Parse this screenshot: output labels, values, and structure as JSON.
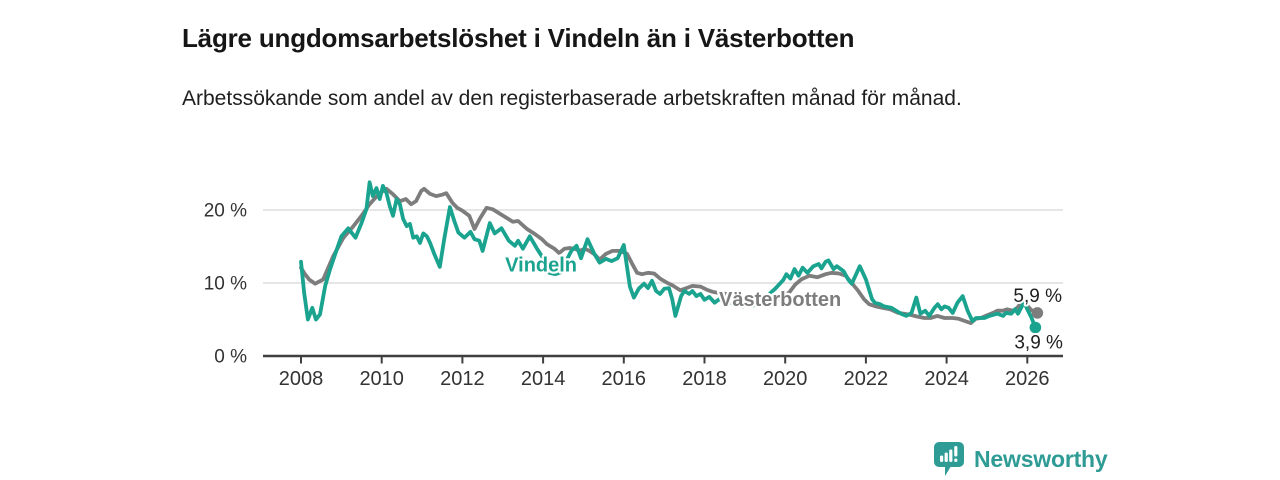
{
  "header": {
    "title": "Lägre ungdomsarbetslöshet i Vindeln än i Västerbotten",
    "subtitle": "Arbetssökande som andel av den registerbaserade arbetskraften månad för månad."
  },
  "branding": {
    "logo_text": "Newsworthy",
    "logo_icon": "speech-bubble-bar-chart-icon",
    "logo_color": "#2E9B95"
  },
  "colors": {
    "vindeln_line": "#1AA38F",
    "vasterbotten_line": "#7D7D7D",
    "axis_text": "#333333",
    "gridline": "#D6D6D6",
    "axis_line": "#3F3F3F",
    "end_label_text": "#1F1F1F",
    "background": "#FFFFFF"
  },
  "chart_data": {
    "type": "line",
    "title": "Lägre ungdomsarbetslöshet i Vindeln än i Västerbotten",
    "subtitle": "Arbetssökande som andel av den registerbaserade arbetskraften månad för månad.",
    "xlabel": "",
    "ylabel": "",
    "x_unit": "year",
    "xlim": [
      2007.9,
      2026.85
    ],
    "ylim": [
      0,
      24.5
    ],
    "grid": "horizontal",
    "legend_position": "inline-labels",
    "yticks": [
      {
        "value": 0,
        "label": "0 %"
      },
      {
        "value": 10,
        "label": "10 %"
      },
      {
        "value": 20,
        "label": "20 %"
      }
    ],
    "xticks": [
      {
        "value": 2008,
        "label": "2008"
      },
      {
        "value": 2010,
        "label": "2010"
      },
      {
        "value": 2012,
        "label": "2012"
      },
      {
        "value": 2014,
        "label": "2014"
      },
      {
        "value": 2016,
        "label": "2016"
      },
      {
        "value": 2018,
        "label": "2018"
      },
      {
        "value": 2020,
        "label": "2020"
      },
      {
        "value": 2022,
        "label": "2022"
      },
      {
        "value": 2024,
        "label": "2024"
      },
      {
        "value": 2026,
        "label": "2026"
      }
    ],
    "series": [
      {
        "name": "Västerbotten",
        "color": "#7D7D7D",
        "end_value": 5.9,
        "end_label": "5,9 %",
        "end_label_side": "above",
        "inline_label_anchor": {
          "year": 2018.36,
          "value": 6.85
        },
        "points": [
          [
            2008.0,
            12.1
          ],
          [
            2008.1,
            11.2
          ],
          [
            2008.2,
            10.5
          ],
          [
            2008.35,
            9.9
          ],
          [
            2008.55,
            10.5
          ],
          [
            2008.8,
            13.7
          ],
          [
            2009.05,
            16.2
          ],
          [
            2009.3,
            17.8
          ],
          [
            2009.5,
            19.2
          ],
          [
            2009.7,
            20.8
          ],
          [
            2009.88,
            21.9
          ],
          [
            2010.03,
            22.6
          ],
          [
            2010.12,
            22.9
          ],
          [
            2010.27,
            22.2
          ],
          [
            2010.45,
            21.2
          ],
          [
            2010.6,
            21.5
          ],
          [
            2010.73,
            20.8
          ],
          [
            2010.85,
            21.2
          ],
          [
            2010.98,
            22.6
          ],
          [
            2011.05,
            22.9
          ],
          [
            2011.2,
            22.2
          ],
          [
            2011.35,
            21.9
          ],
          [
            2011.5,
            22.1
          ],
          [
            2011.6,
            22.3
          ],
          [
            2011.75,
            21.0
          ],
          [
            2011.87,
            20.3
          ],
          [
            2012.0,
            19.9
          ],
          [
            2012.17,
            19.2
          ],
          [
            2012.3,
            17.4
          ],
          [
            2012.43,
            18.8
          ],
          [
            2012.6,
            20.3
          ],
          [
            2012.75,
            20.1
          ],
          [
            2012.93,
            19.5
          ],
          [
            2013.1,
            18.9
          ],
          [
            2013.25,
            18.4
          ],
          [
            2013.38,
            18.5
          ],
          [
            2013.48,
            18.0
          ],
          [
            2013.6,
            17.4
          ],
          [
            2013.8,
            16.7
          ],
          [
            2013.97,
            16.0
          ],
          [
            2014.1,
            15.3
          ],
          [
            2014.28,
            14.7
          ],
          [
            2014.4,
            14.1
          ],
          [
            2014.53,
            14.7
          ],
          [
            2014.66,
            14.8
          ],
          [
            2014.78,
            14.7
          ],
          [
            2014.9,
            14.4
          ],
          [
            2015.03,
            14.7
          ],
          [
            2015.15,
            14.4
          ],
          [
            2015.28,
            13.9
          ],
          [
            2015.4,
            13.2
          ],
          [
            2015.56,
            14.0
          ],
          [
            2015.72,
            14.4
          ],
          [
            2015.9,
            14.4
          ],
          [
            2016.08,
            14.0
          ],
          [
            2016.2,
            12.7
          ],
          [
            2016.33,
            11.4
          ],
          [
            2016.45,
            11.2
          ],
          [
            2016.6,
            11.4
          ],
          [
            2016.75,
            11.3
          ],
          [
            2016.9,
            10.6
          ],
          [
            2017.05,
            10.1
          ],
          [
            2017.2,
            9.7
          ],
          [
            2017.4,
            9.0
          ],
          [
            2017.55,
            9.3
          ],
          [
            2017.7,
            9.6
          ],
          [
            2017.9,
            9.5
          ],
          [
            2018.05,
            9.1
          ],
          [
            2018.2,
            8.8
          ],
          [
            2018.37,
            8.6
          ],
          [
            2018.55,
            8.5
          ],
          [
            2018.7,
            8.2
          ],
          [
            2018.85,
            8.0
          ],
          [
            2019.05,
            7.7
          ],
          [
            2019.2,
            7.4
          ],
          [
            2019.35,
            7.2
          ],
          [
            2019.5,
            7.3
          ],
          [
            2019.7,
            7.6
          ],
          [
            2019.9,
            8.0
          ],
          [
            2020.1,
            8.7
          ],
          [
            2020.25,
            9.8
          ],
          [
            2020.4,
            10.5
          ],
          [
            2020.6,
            11.0
          ],
          [
            2020.8,
            10.8
          ],
          [
            2021.0,
            11.2
          ],
          [
            2021.15,
            11.4
          ],
          [
            2021.33,
            11.3
          ],
          [
            2021.5,
            11.0
          ],
          [
            2021.6,
            10.3
          ],
          [
            2021.8,
            9.0
          ],
          [
            2021.95,
            7.8
          ],
          [
            2022.08,
            7.1
          ],
          [
            2022.25,
            6.8
          ],
          [
            2022.4,
            6.6
          ],
          [
            2022.6,
            6.4
          ],
          [
            2022.8,
            5.9
          ],
          [
            2022.95,
            5.8
          ],
          [
            2023.13,
            5.6
          ],
          [
            2023.28,
            5.4
          ],
          [
            2023.45,
            5.2
          ],
          [
            2023.6,
            5.2
          ],
          [
            2023.77,
            5.5
          ],
          [
            2023.95,
            5.2
          ],
          [
            2024.15,
            5.2
          ],
          [
            2024.3,
            5.1
          ],
          [
            2024.45,
            4.8
          ],
          [
            2024.6,
            4.5
          ],
          [
            2024.72,
            5.1
          ],
          [
            2024.85,
            5.2
          ],
          [
            2024.97,
            5.5
          ],
          [
            2025.15,
            5.9
          ],
          [
            2025.26,
            6.2
          ],
          [
            2025.4,
            6.2
          ],
          [
            2025.5,
            6.4
          ],
          [
            2025.65,
            6.2
          ],
          [
            2025.75,
            6.6
          ],
          [
            2025.9,
            7.6
          ],
          [
            2026.0,
            6.9
          ],
          [
            2026.1,
            6.3
          ],
          [
            2026.25,
            5.9
          ]
        ]
      },
      {
        "name": "Vindeln",
        "color": "#1AA38F",
        "end_value": 3.9,
        "end_label": "3,9 %",
        "end_label_side": "below",
        "inline_label_anchor": {
          "year": 2013.06,
          "value": 11.6
        },
        "points": [
          [
            2008.0,
            12.9
          ],
          [
            2008.08,
            8.6
          ],
          [
            2008.17,
            5.0
          ],
          [
            2008.28,
            6.6
          ],
          [
            2008.37,
            5.0
          ],
          [
            2008.47,
            5.7
          ],
          [
            2008.6,
            9.6
          ],
          [
            2008.72,
            11.9
          ],
          [
            2008.9,
            14.8
          ],
          [
            2009.0,
            16.4
          ],
          [
            2009.17,
            17.5
          ],
          [
            2009.35,
            16.2
          ],
          [
            2009.5,
            18.2
          ],
          [
            2009.62,
            20.1
          ],
          [
            2009.7,
            23.8
          ],
          [
            2009.78,
            21.9
          ],
          [
            2009.87,
            23.0
          ],
          [
            2009.95,
            21.5
          ],
          [
            2010.03,
            23.3
          ],
          [
            2010.12,
            22.3
          ],
          [
            2010.2,
            20.5
          ],
          [
            2010.28,
            19.2
          ],
          [
            2010.37,
            21.5
          ],
          [
            2010.45,
            20.8
          ],
          [
            2010.53,
            18.8
          ],
          [
            2010.62,
            17.8
          ],
          [
            2010.7,
            18.1
          ],
          [
            2010.78,
            16.2
          ],
          [
            2010.87,
            16.4
          ],
          [
            2010.95,
            15.5
          ],
          [
            2011.03,
            16.8
          ],
          [
            2011.12,
            16.4
          ],
          [
            2011.2,
            15.5
          ],
          [
            2011.3,
            14.0
          ],
          [
            2011.44,
            12.2
          ],
          [
            2011.55,
            16.0
          ],
          [
            2011.69,
            20.4
          ],
          [
            2011.8,
            18.5
          ],
          [
            2011.9,
            16.9
          ],
          [
            2012.05,
            16.2
          ],
          [
            2012.2,
            17.0
          ],
          [
            2012.3,
            16.0
          ],
          [
            2012.42,
            15.8
          ],
          [
            2012.5,
            14.4
          ],
          [
            2012.68,
            18.2
          ],
          [
            2012.8,
            16.8
          ],
          [
            2012.97,
            17.5
          ],
          [
            2013.15,
            15.8
          ],
          [
            2013.3,
            15.1
          ],
          [
            2013.38,
            15.8
          ],
          [
            2013.5,
            14.7
          ],
          [
            2013.67,
            16.4
          ],
          [
            2013.85,
            14.7
          ],
          [
            2014.0,
            13.4
          ],
          [
            2014.15,
            11.4
          ],
          [
            2014.3,
            11.2
          ],
          [
            2014.45,
            11.5
          ],
          [
            2014.6,
            13.3
          ],
          [
            2014.7,
            14.4
          ],
          [
            2014.83,
            15.1
          ],
          [
            2014.94,
            13.4
          ],
          [
            2015.1,
            16.0
          ],
          [
            2015.27,
            14.0
          ],
          [
            2015.4,
            12.8
          ],
          [
            2015.56,
            13.3
          ],
          [
            2015.7,
            13.0
          ],
          [
            2015.85,
            13.4
          ],
          [
            2016.0,
            15.2
          ],
          [
            2016.15,
            9.5
          ],
          [
            2016.25,
            8.0
          ],
          [
            2016.37,
            9.2
          ],
          [
            2016.5,
            9.9
          ],
          [
            2016.6,
            9.3
          ],
          [
            2016.7,
            10.3
          ],
          [
            2016.8,
            8.9
          ],
          [
            2016.9,
            8.5
          ],
          [
            2017.0,
            9.2
          ],
          [
            2017.12,
            9.3
          ],
          [
            2017.2,
            7.8
          ],
          [
            2017.28,
            5.5
          ],
          [
            2017.42,
            8.2
          ],
          [
            2017.5,
            8.9
          ],
          [
            2017.62,
            8.5
          ],
          [
            2017.7,
            8.9
          ],
          [
            2017.8,
            8.2
          ],
          [
            2017.9,
            8.5
          ],
          [
            2018.0,
            7.7
          ],
          [
            2018.12,
            8.1
          ],
          [
            2018.25,
            7.3
          ],
          [
            2018.37,
            7.8
          ],
          [
            2018.5,
            7.3
          ],
          [
            2018.6,
            7.7
          ],
          [
            2018.7,
            7.1
          ],
          [
            2018.82,
            7.3
          ],
          [
            2018.95,
            6.8
          ],
          [
            2019.05,
            7.1
          ],
          [
            2019.2,
            6.9
          ],
          [
            2019.35,
            7.3
          ],
          [
            2019.55,
            8.2
          ],
          [
            2019.75,
            9.2
          ],
          [
            2019.95,
            10.4
          ],
          [
            2020.03,
            11.2
          ],
          [
            2020.13,
            10.6
          ],
          [
            2020.23,
            11.9
          ],
          [
            2020.33,
            11.0
          ],
          [
            2020.43,
            12.1
          ],
          [
            2020.55,
            11.4
          ],
          [
            2020.7,
            12.3
          ],
          [
            2020.83,
            12.6
          ],
          [
            2020.9,
            12.0
          ],
          [
            2021.0,
            12.9
          ],
          [
            2021.07,
            13.1
          ],
          [
            2021.2,
            11.9
          ],
          [
            2021.28,
            12.3
          ],
          [
            2021.45,
            11.6
          ],
          [
            2021.56,
            10.5
          ],
          [
            2021.65,
            9.9
          ],
          [
            2021.85,
            12.3
          ],
          [
            2022.0,
            10.5
          ],
          [
            2022.15,
            7.8
          ],
          [
            2022.22,
            7.3
          ],
          [
            2022.35,
            7.1
          ],
          [
            2022.45,
            6.8
          ],
          [
            2022.63,
            6.6
          ],
          [
            2022.75,
            6.2
          ],
          [
            2022.87,
            5.8
          ],
          [
            2023.0,
            5.5
          ],
          [
            2023.13,
            5.9
          ],
          [
            2023.25,
            8.0
          ],
          [
            2023.35,
            5.8
          ],
          [
            2023.47,
            6.2
          ],
          [
            2023.57,
            5.5
          ],
          [
            2023.7,
            6.6
          ],
          [
            2023.78,
            7.1
          ],
          [
            2023.87,
            6.4
          ],
          [
            2023.95,
            6.8
          ],
          [
            2024.05,
            6.6
          ],
          [
            2024.15,
            5.9
          ],
          [
            2024.27,
            7.3
          ],
          [
            2024.4,
            8.2
          ],
          [
            2024.52,
            6.2
          ],
          [
            2024.64,
            4.8
          ],
          [
            2024.73,
            5.2
          ],
          [
            2024.94,
            5.2
          ],
          [
            2025.06,
            5.5
          ],
          [
            2025.26,
            5.8
          ],
          [
            2025.4,
            5.5
          ],
          [
            2025.47,
            5.9
          ],
          [
            2025.6,
            5.8
          ],
          [
            2025.7,
            6.4
          ],
          [
            2025.77,
            5.8
          ],
          [
            2025.92,
            7.4
          ],
          [
            2026.0,
            6.4
          ],
          [
            2026.1,
            5.3
          ],
          [
            2026.2,
            3.9
          ]
        ]
      }
    ]
  }
}
